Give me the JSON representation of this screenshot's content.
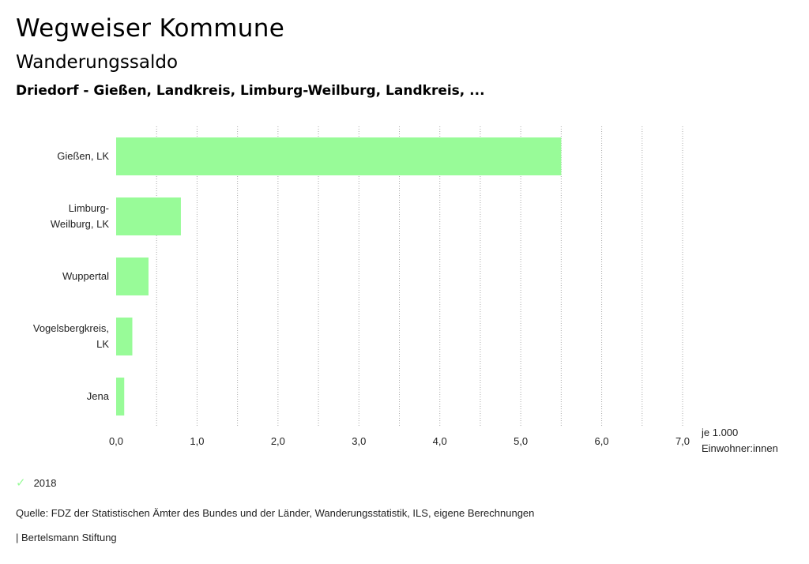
{
  "header": {
    "title": "Wegweiser Kommune",
    "subtitle": "Wanderungssaldo",
    "subsubtitle": "Driedorf - Gießen, Landkreis, Limburg-Weilburg, Landkreis, ..."
  },
  "chart_data": {
    "type": "bar",
    "orientation": "horizontal",
    "categories": [
      [
        "Gießen, LK"
      ],
      [
        "Limburg-",
        "Weilburg, LK"
      ],
      [
        "Wuppertal"
      ],
      [
        "Vogelsbergkreis,",
        "LK"
      ],
      [
        "Jena"
      ]
    ],
    "series": [
      {
        "name": "2018",
        "values": [
          5.5,
          0.8,
          0.4,
          0.2,
          0.1
        ]
      }
    ],
    "xlim": [
      0,
      7
    ],
    "ticks": [
      0,
      1,
      2,
      3,
      4,
      5,
      6,
      7
    ],
    "tick_labels": [
      "0,0",
      "1,0",
      "2,0",
      "3,0",
      "4,0",
      "5,0",
      "6,0",
      "7,0"
    ],
    "unit_label": [
      "je 1.000",
      "Einwohner:innen"
    ],
    "grid": "vertical-dotted",
    "bar_color": "#98fb98"
  },
  "legend": {
    "check_icon": "✓",
    "label": "2018"
  },
  "footer": {
    "source": "Quelle: FDZ der Statistischen Ämter des Bundes und der Länder, Wanderungsstatistik, ILS, eigene Berechnungen",
    "credit": "| Bertelsmann Stiftung"
  }
}
